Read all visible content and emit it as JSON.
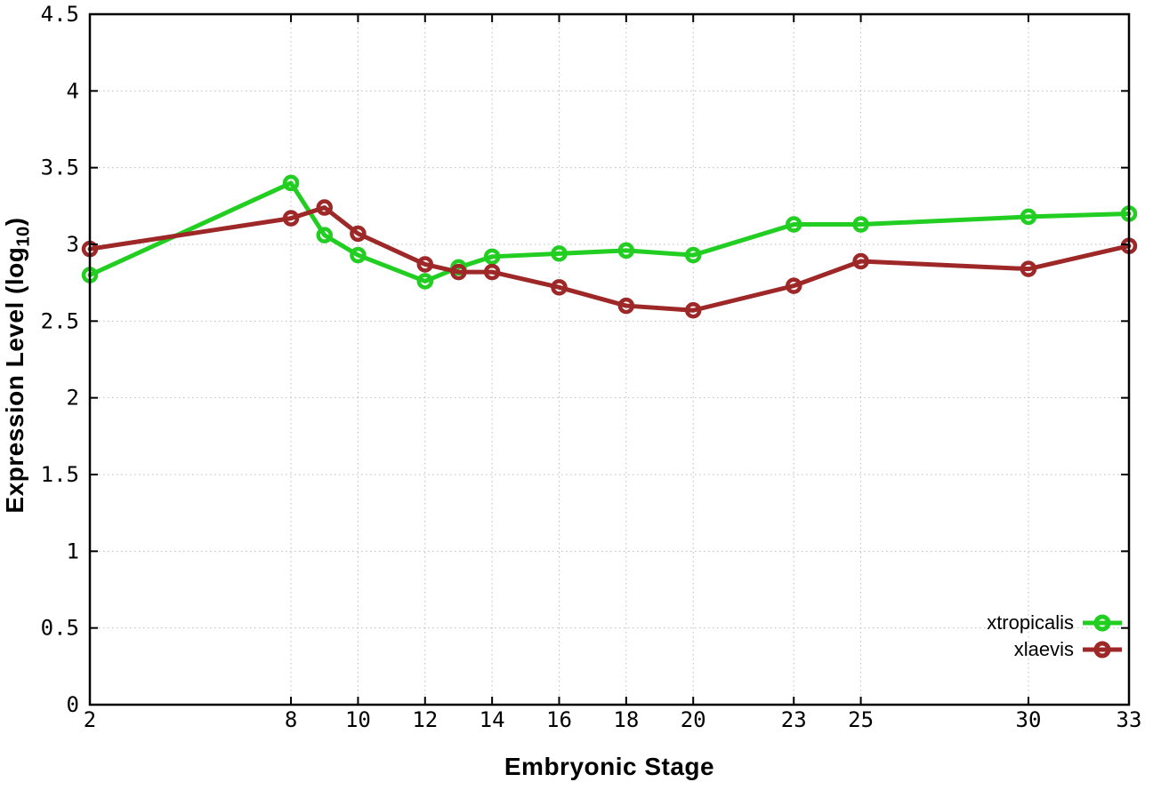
{
  "chart_data": {
    "type": "line",
    "title": "",
    "xlabel": "Embryonic Stage",
    "ylabel": "Expression Level (log10)",
    "ylabel_parts": {
      "main": "Expression Level (log",
      "sub": "10",
      "close": ")"
    },
    "xlim": [
      2,
      33
    ],
    "ylim": [
      0,
      4.5
    ],
    "ytick_step": 0.5,
    "xticks": [
      2,
      8,
      10,
      12,
      14,
      16,
      18,
      20,
      23,
      25,
      30,
      33
    ],
    "grid": true,
    "grid_style": "dotted",
    "legend_position": "bottom-right",
    "background_color": "#ffffff",
    "border_color": "#000000",
    "grid_color": "#bdbdbd",
    "series": [
      {
        "name": "xtropicalis",
        "color": "#23ce23",
        "marker": "open-circle",
        "points": [
          [
            2,
            2.8
          ],
          [
            8,
            3.4
          ],
          [
            9,
            3.06
          ],
          [
            10,
            2.93
          ],
          [
            12,
            2.76
          ],
          [
            13,
            2.85
          ],
          [
            14,
            2.92
          ],
          [
            16,
            2.94
          ],
          [
            18,
            2.96
          ],
          [
            20,
            2.93
          ],
          [
            23,
            3.13
          ],
          [
            25,
            3.13
          ],
          [
            30,
            3.18
          ],
          [
            33,
            3.2
          ]
        ]
      },
      {
        "name": "xlaevis",
        "color": "#9e2828",
        "marker": "open-circle",
        "points": [
          [
            2,
            2.97
          ],
          [
            8,
            3.17
          ],
          [
            9,
            3.24
          ],
          [
            10,
            3.07
          ],
          [
            12,
            2.87
          ],
          [
            13,
            2.82
          ],
          [
            14,
            2.82
          ],
          [
            16,
            2.72
          ],
          [
            18,
            2.6
          ],
          [
            20,
            2.57
          ],
          [
            23,
            2.73
          ],
          [
            25,
            2.89
          ],
          [
            30,
            2.84
          ],
          [
            33,
            2.99
          ]
        ]
      }
    ]
  }
}
